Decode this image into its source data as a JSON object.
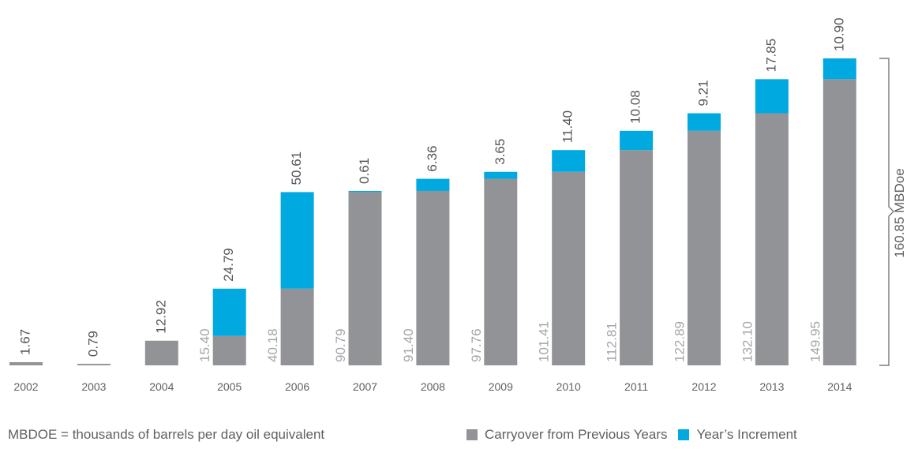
{
  "chart_data": {
    "type": "bar",
    "stacked": true,
    "categories": [
      "2002",
      "2003",
      "2004",
      "2005",
      "2006",
      "2007",
      "2008",
      "2009",
      "2010",
      "2011",
      "2012",
      "2013",
      "2014"
    ],
    "series": [
      {
        "name": "Carryover from Previous Years",
        "color": "#929396",
        "values": [
          1.67,
          0.79,
          12.92,
          15.4,
          40.18,
          90.79,
          91.4,
          97.76,
          101.41,
          112.81,
          122.89,
          132.1,
          149.95
        ],
        "labels": [
          "",
          "",
          "",
          "15.40",
          "40.18",
          "90.79",
          "91.40",
          "97.76",
          "101.41",
          "112.81",
          "122.89",
          "132.10",
          "149.95"
        ]
      },
      {
        "name": "Year’s Increment",
        "color": "#00a9e0",
        "values": [
          0,
          0,
          0,
          24.79,
          50.61,
          0.61,
          6.36,
          3.65,
          11.4,
          10.08,
          9.21,
          17.85,
          10.9
        ],
        "labels": [
          "",
          "",
          "",
          "24.79",
          "50.61",
          "0.61",
          "6.36",
          "3.65",
          "11.40",
          "10.08",
          "9.21",
          "17.85",
          "10.90"
        ]
      }
    ],
    "top_labels": [
      "1.67",
      "0.79",
      "12.92",
      "24.79",
      "50.61",
      "0.61",
      "6.36",
      "3.65",
      "11.40",
      "10.08",
      "9.21",
      "17.85",
      "10.90"
    ],
    "ylim": [
      0,
      160.85
    ],
    "total_annotation": "160.85 MBDoe",
    "footnote": "MBDOE = thousands of barrels per day oil equivalent",
    "legend_position": "bottom-right",
    "grid": false
  }
}
